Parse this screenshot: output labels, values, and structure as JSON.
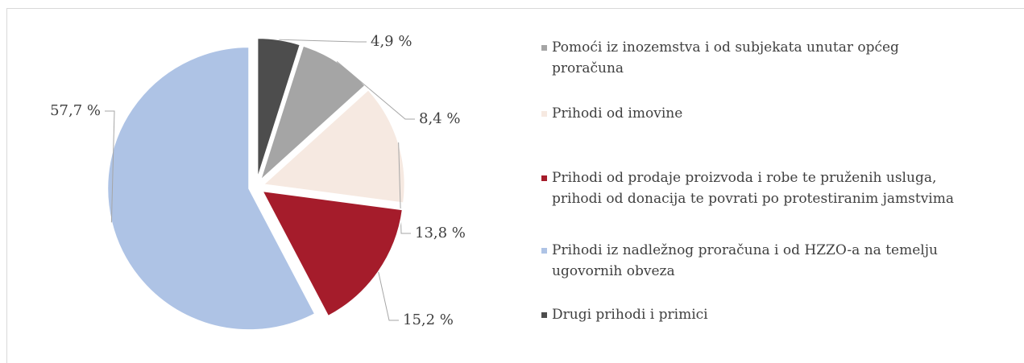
{
  "chart_data": {
    "type": "pie",
    "categories": [
      "Pomoći iz inozemstva i od subjekata unutar općeg proračuna",
      "Prihodi od imovine",
      "Prihodi od prodaje proizvoda i robe te pruženih usluga, prihodi od donacija te povrati po protestiranim jamstvima",
      "Prihodi iz nadležnog proračuna i od HZZO-a na temelju ugovornih obveza",
      "Drugi prihodi i primici"
    ],
    "values": [
      8.4,
      13.8,
      15.2,
      57.7,
      4.9
    ],
    "value_labels": [
      "8,4 %",
      "13,8 %",
      "15,2 %",
      "57,7 %",
      "4,9 %"
    ],
    "colors": [
      "#a5a5a5",
      "#f6e9e1",
      "#a51c2b",
      "#aec3e5",
      "#4d4d4d"
    ],
    "legend": "right"
  }
}
